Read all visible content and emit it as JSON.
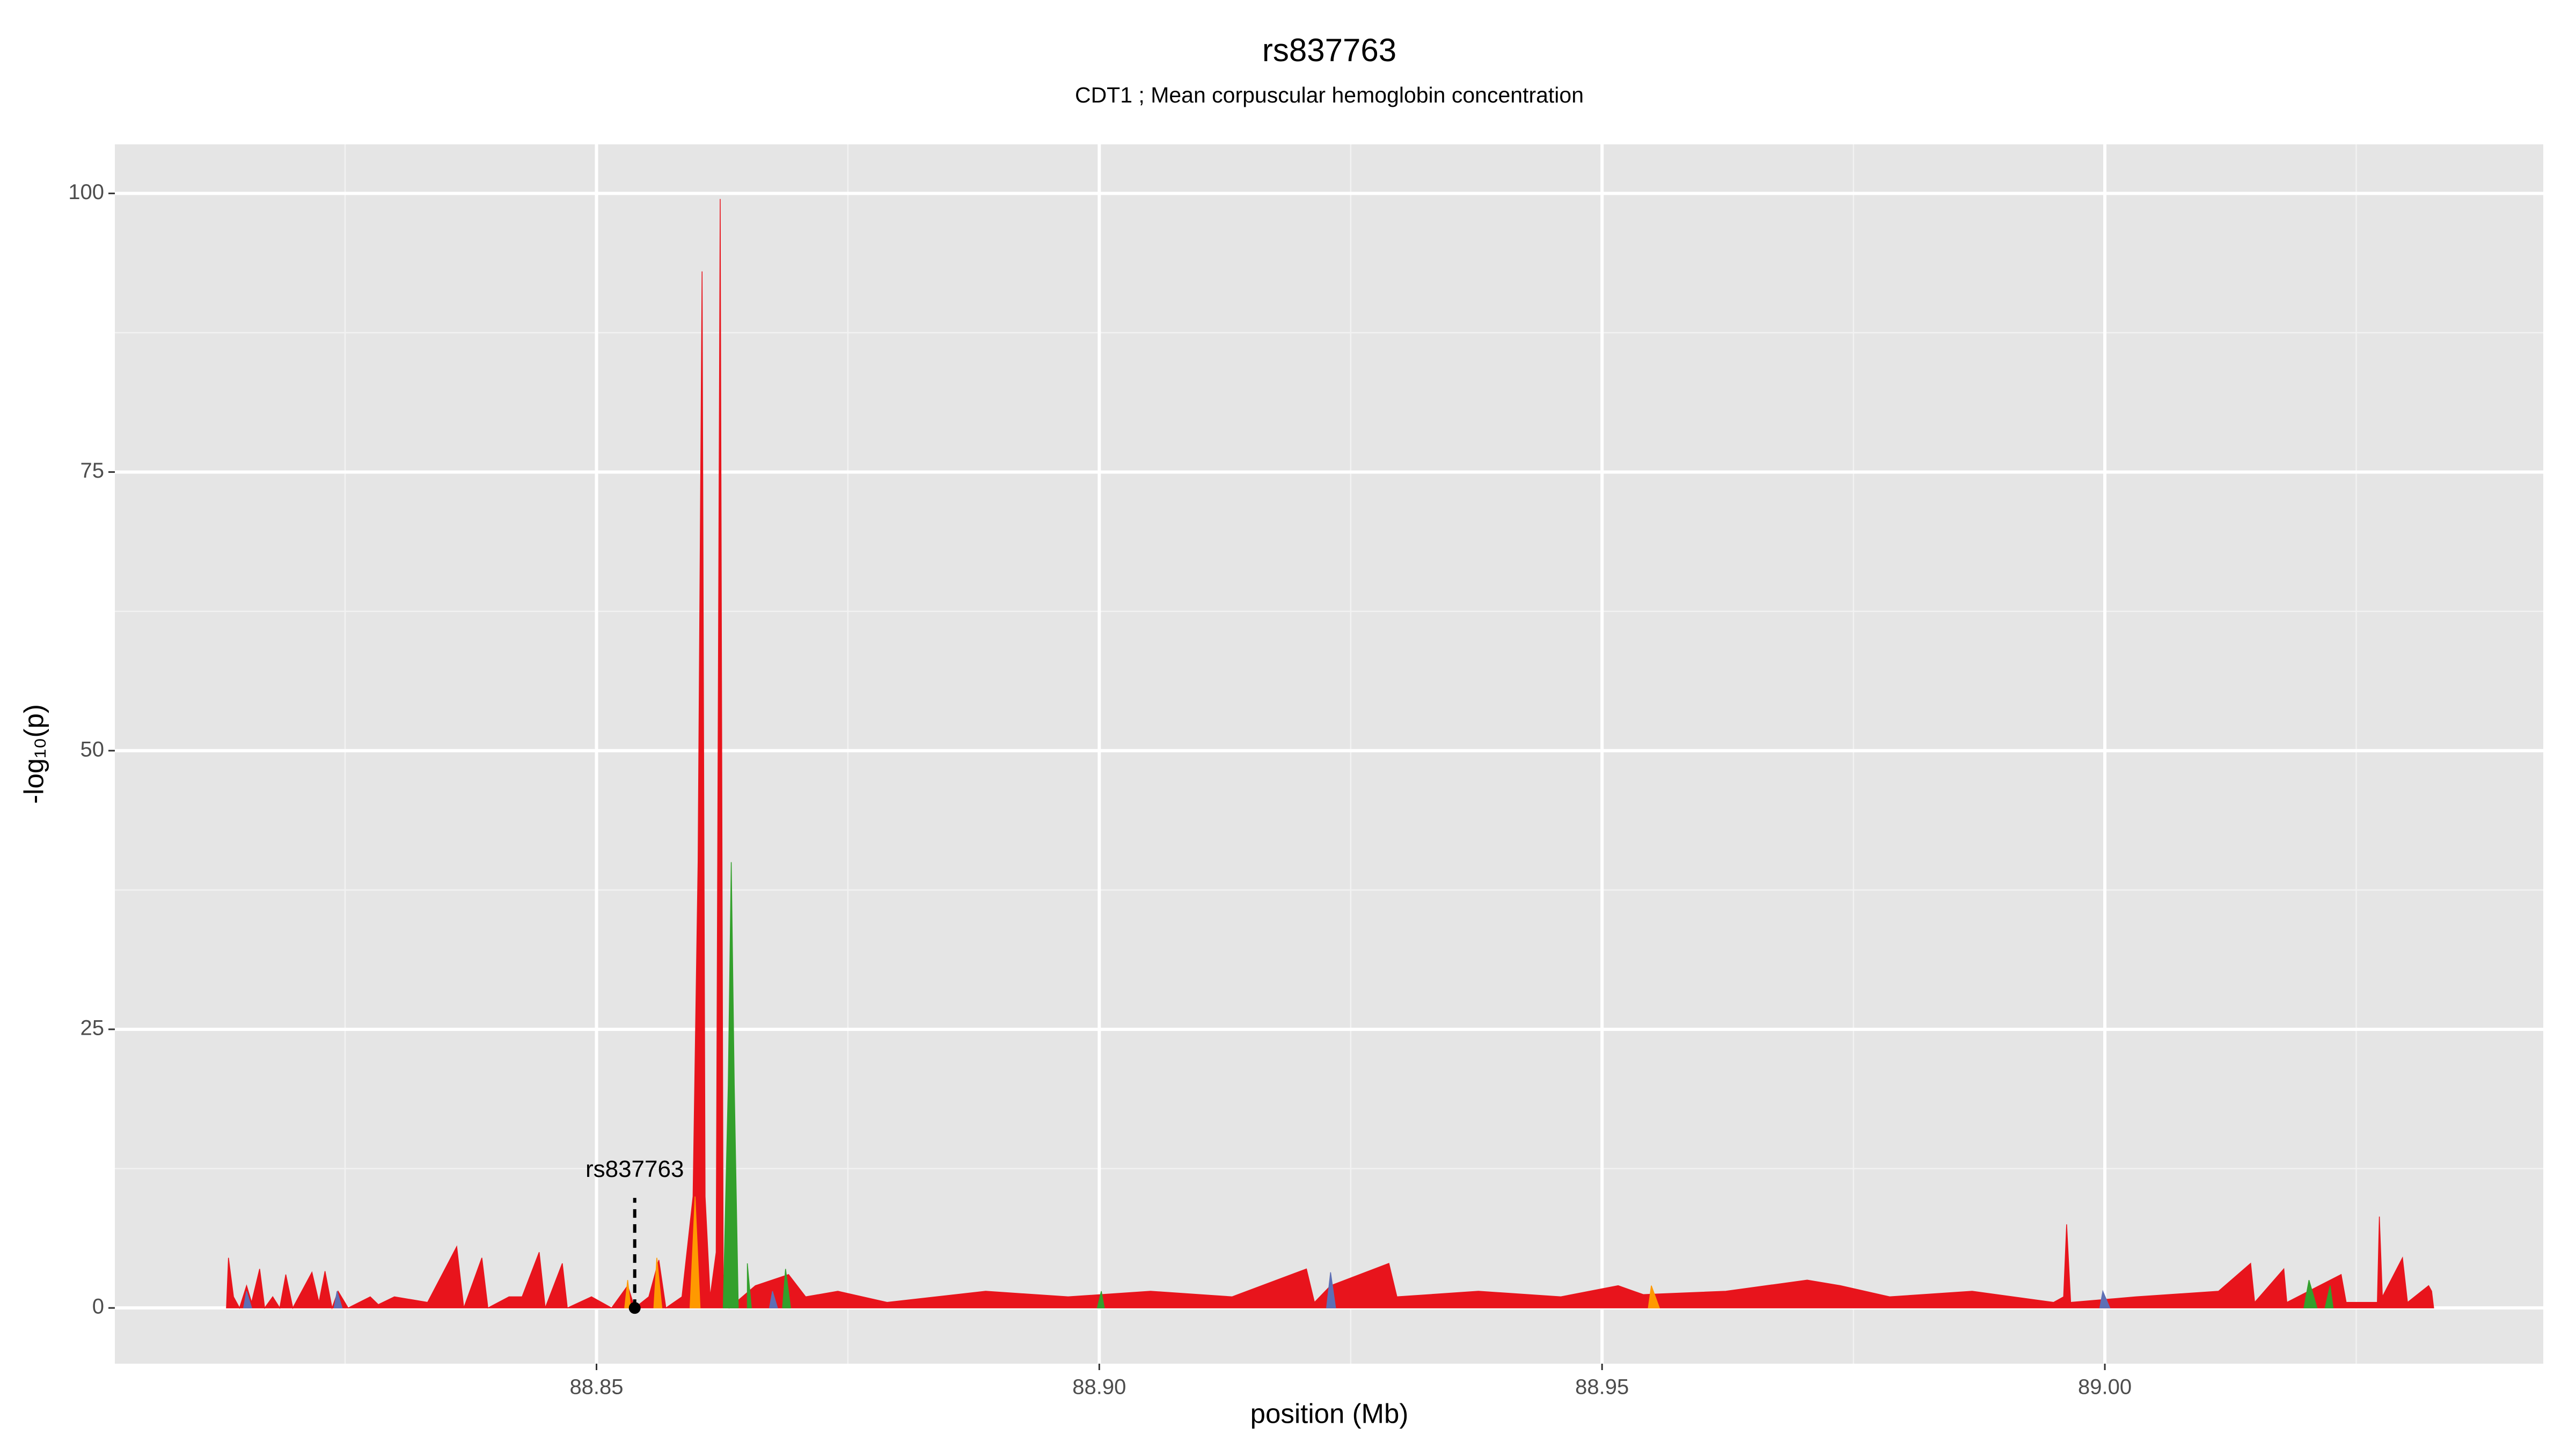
{
  "chart_data": {
    "type": "area",
    "title": "rs837763",
    "subtitle": "CDT1 ; Mean corpuscular hemoglobin concentration",
    "x_label": "position (Mb)",
    "y_label": "-log₁₀(p)",
    "xlim": [
      88.8021,
      89.0436
    ],
    "ylim": [
      -5,
      104.4
    ],
    "xticks": [
      88.85,
      {
        "value": 88.9,
        "label": "88.90"
      },
      88.95,
      {
        "value": 89,
        "label": "89.00"
      }
    ],
    "yticks": [
      0,
      25,
      50,
      75,
      100
    ],
    "grid": true,
    "annotation": {
      "text": "rs837763",
      "x": 88.8538,
      "y": 0
    },
    "series": [
      {
        "color": "#e8141c",
        "x": [
          88.8132,
          88.8134,
          88.8139,
          88.8145,
          88.8152,
          88.8157,
          88.8165,
          88.817,
          88.8178,
          88.8185,
          88.8191,
          88.8198,
          88.8217,
          88.8224,
          88.823,
          88.8237,
          88.8243,
          88.8253,
          88.8275,
          88.8283,
          88.8299,
          88.8332,
          88.8361,
          88.8368,
          88.8386,
          88.8392,
          88.8413,
          88.8426,
          88.8443,
          88.8449,
          88.8466,
          88.8471,
          88.8495,
          88.8515,
          88.8531,
          88.8538,
          88.8552,
          88.8562,
          88.8569,
          88.8585,
          88.8596,
          88.8601,
          88.8605,
          88.8608,
          88.8613,
          88.8619,
          88.8623,
          88.8626,
          88.8632,
          88.8658,
          88.8691,
          88.8708,
          88.874,
          88.8789,
          88.8838,
          88.8887,
          88.8969,
          88.9051,
          88.9132,
          88.9206,
          88.9214,
          88.923,
          88.9288,
          88.9296,
          88.9377,
          88.9459,
          88.9516,
          88.9541,
          88.9623,
          88.9704,
          88.9737,
          88.9786,
          88.9868,
          88.9949,
          88.9959,
          88.9962,
          88.9966,
          89.0031,
          89.0113,
          89.0145,
          89.0149,
          89.0178,
          89.0181,
          89.0235,
          89.024,
          89.0271,
          89.0273,
          89.0276,
          89.0296,
          89.0301,
          89.0322,
          89.0325,
          89.0327
        ],
        "values": [
          0,
          4.5,
          1,
          0,
          2,
          0.5,
          3.5,
          0,
          1,
          0,
          3,
          0,
          3.2,
          0.5,
          3.3,
          0,
          1.5,
          0,
          1,
          0.3,
          1,
          0.5,
          5.5,
          0,
          4.5,
          0,
          1,
          1,
          5,
          0,
          4,
          0,
          1,
          0,
          2,
          0,
          1,
          4.3,
          0,
          1,
          10,
          40,
          93,
          10,
          1,
          5,
          99.5,
          3,
          0,
          2,
          3,
          1,
          1.5,
          0.5,
          1,
          1.5,
          1,
          1.5,
          1,
          3.5,
          0.5,
          2,
          4,
          1,
          1.5,
          1,
          2,
          1.2,
          1.5,
          2.5,
          2,
          1,
          1.5,
          0.5,
          1,
          7.5,
          0.5,
          1,
          1.5,
          4,
          0.5,
          3.5,
          0.5,
          3,
          0.5,
          0.5,
          8.2,
          1,
          4.5,
          0.5,
          2,
          1.5,
          0
        ]
      },
      {
        "color": "#ff9900",
        "x": [
          88.8528,
          88.8531,
          88.8534,
          null,
          88.8557,
          88.856,
          88.8565,
          null,
          88.8593,
          88.8598,
          88.8603,
          null,
          88.9546,
          88.9549,
          88.9557
        ],
        "values": [
          0,
          2.5,
          0,
          null,
          0,
          4.5,
          0,
          null,
          0,
          10,
          0,
          null,
          0,
          2,
          0
        ]
      },
      {
        "color": "#5e6fb5",
        "x": [
          88.8149,
          88.8152,
          88.8157,
          null,
          88.8239,
          88.8242,
          88.8247,
          null,
          88.8672,
          88.8675,
          88.868,
          null,
          88.9226,
          88.923,
          88.9235,
          null,
          88.9995,
          88.9998,
          89.0005
        ],
        "values": [
          0,
          1.5,
          0,
          null,
          0,
          1.5,
          0,
          null,
          0,
          1.5,
          0,
          null,
          0,
          3.2,
          0,
          null,
          0,
          1.5,
          0
        ]
      },
      {
        "color": "#33a02c",
        "x": [
          88.8626,
          88.8631,
          88.8634,
          88.8637,
          88.8641,
          null,
          88.865,
          88.8654,
          null,
          88.8685,
          88.8688,
          88.8693,
          null,
          88.8998,
          88.9002,
          88.9005,
          null,
          89.0198,
          89.0203,
          89.0211,
          null,
          89.0219,
          89.0224,
          89.0227
        ],
        "values": [
          0,
          20,
          40,
          20,
          0,
          null,
          4,
          0,
          null,
          0,
          3.5,
          0,
          null,
          0,
          1.5,
          0,
          null,
          0,
          2.5,
          0,
          null,
          0,
          2,
          0
        ]
      }
    ]
  }
}
